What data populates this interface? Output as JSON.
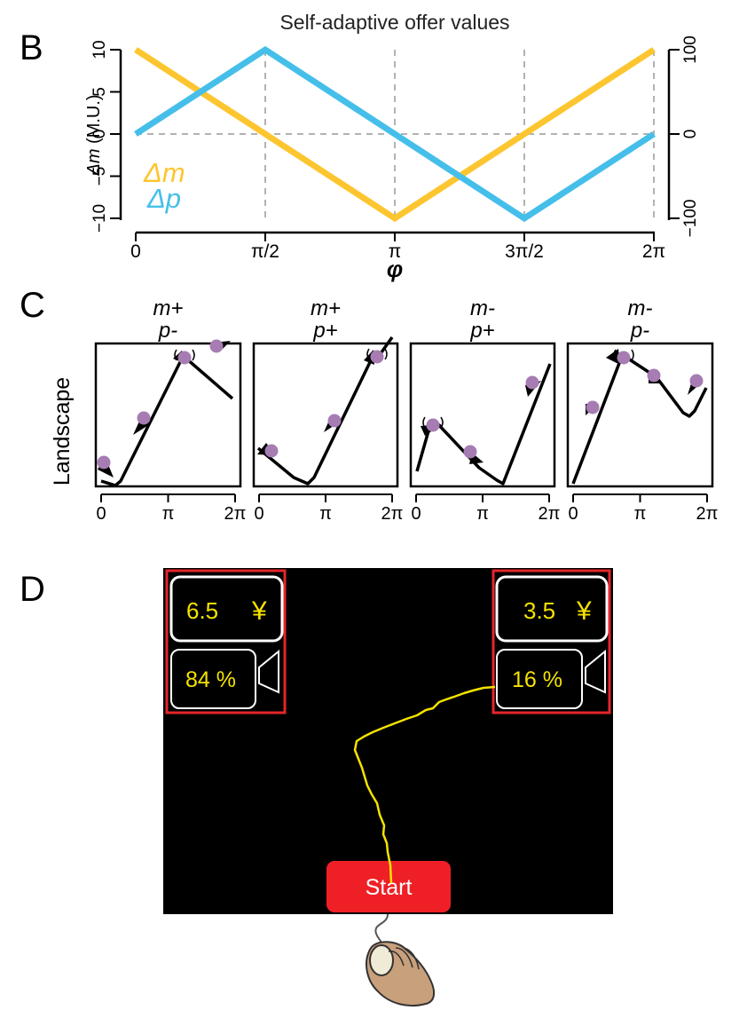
{
  "panels": {
    "b": "B",
    "c": "C",
    "d": "D"
  },
  "chart_data": [
    {
      "type": "line",
      "title": "Self-adaptive offer values",
      "xlabel": "φ",
      "ylabel_sym": "Δm",
      "ylabel_unit": " (M.U.)",
      "x_ticks": [
        "0",
        "π/2",
        "π",
        "3π/2",
        "2π"
      ],
      "y_left_ticks": [
        "−10",
        "−5",
        "0",
        "5",
        "10"
      ],
      "y_right_ticks": [
        "−100",
        "0",
        "100"
      ],
      "x": [
        0,
        1.5708,
        3.1416,
        4.7124,
        6.2832
      ],
      "ylim_left": [
        -10,
        10
      ],
      "ylim_right": [
        -100,
        100
      ],
      "series": [
        {
          "name": "Δm",
          "axis": "left",
          "color": "#FDC52F",
          "values": [
            10,
            0,
            -10,
            0,
            10
          ]
        },
        {
          "name": "Δp",
          "axis": "right",
          "color": "#45BFEA",
          "values": [
            0,
            100,
            0,
            -100,
            0
          ]
        }
      ]
    },
    {
      "type": "line",
      "ylabel": "Landscape",
      "x_ticks": [
        "0",
        "π",
        "2π"
      ],
      "panels": [
        {
          "m_label": "m+",
          "p_label": "p-"
        },
        {
          "m_label": "m+",
          "p_label": "p+"
        },
        {
          "m_label": "m-",
          "p_label": "p+"
        },
        {
          "m_label": "m-",
          "p_label": "p-"
        }
      ]
    }
  ],
  "task_screen": {
    "left_option": {
      "money": "6.5",
      "currency": "¥",
      "probability": "84 %"
    },
    "right_option": {
      "money": "3.5",
      "currency": "¥",
      "probability": "16 %"
    },
    "start_label": "Start",
    "colors": {
      "screen": "#000000",
      "highlight": "#E5262B",
      "text": "#F4E200",
      "start": "#EE2026",
      "trajectory": "#F4E200"
    }
  }
}
